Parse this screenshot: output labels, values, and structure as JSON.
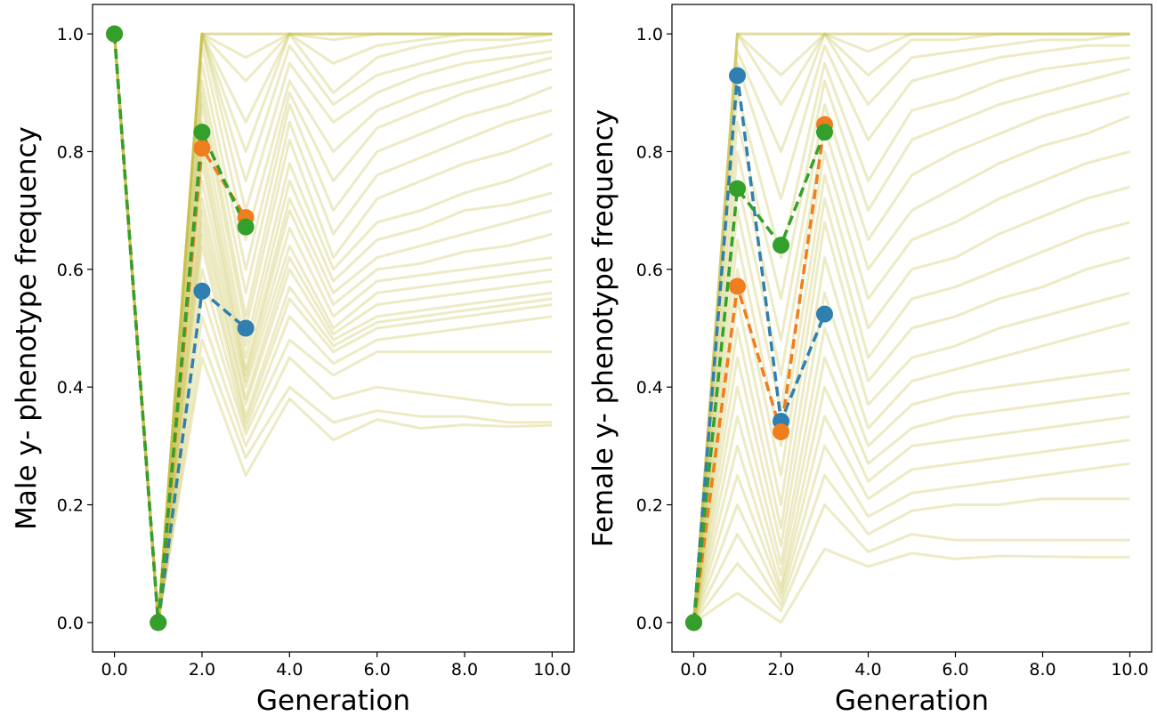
{
  "chart_data": [
    {
      "type": "line",
      "title": "",
      "xlabel": "Generation",
      "ylabel": "Male y- phenotype frequency",
      "xlim": [
        -0.5,
        10.5
      ],
      "ylim": [
        -0.05,
        1.05
      ],
      "xticks": [
        0,
        2,
        4,
        6,
        8,
        10
      ],
      "xtick_labels": [
        "0.0",
        "2.0",
        "4.0",
        "6.0",
        "8.0",
        "10.0"
      ],
      "yticks": [
        0,
        0.2,
        0.4,
        0.6,
        0.8,
        1.0
      ],
      "ytick_labels": [
        "0.0",
        "0.2",
        "0.4",
        "0.6",
        "0.8",
        "1.0"
      ],
      "grid": false,
      "simulation_color": "#c8c04a",
      "simulations_x": [
        0,
        1,
        2,
        3,
        4,
        5,
        6,
        7,
        8,
        9,
        10
      ],
      "simulations": [
        [
          1,
          0,
          1,
          1,
          1,
          1,
          1,
          1,
          1,
          1,
          1
        ],
        [
          1,
          0,
          1,
          1,
          1,
          1,
          1,
          1,
          1,
          1,
          1
        ],
        [
          1,
          0,
          1,
          0.96,
          1,
          1,
          1,
          1,
          1,
          1,
          1
        ],
        [
          1,
          0,
          1,
          0.92,
          1,
          0.99,
          1,
          1,
          1,
          1,
          1
        ],
        [
          1,
          0,
          1,
          0.85,
          1,
          0.95,
          0.98,
          0.99,
          1,
          1,
          1
        ],
        [
          1,
          0,
          1,
          0.8,
          1,
          0.9,
          0.96,
          0.98,
          0.99,
          0.99,
          1
        ],
        [
          1,
          0,
          1,
          0.75,
          0.98,
          0.88,
          0.93,
          0.95,
          0.97,
          0.98,
          0.99
        ],
        [
          1,
          0,
          1,
          0.7,
          0.95,
          0.85,
          0.9,
          0.93,
          0.95,
          0.96,
          0.97
        ],
        [
          1,
          0,
          0.98,
          0.65,
          0.92,
          0.8,
          0.87,
          0.9,
          0.92,
          0.94,
          0.96
        ],
        [
          1,
          0,
          0.95,
          0.6,
          0.9,
          0.75,
          0.84,
          0.87,
          0.9,
          0.92,
          0.94
        ],
        [
          1,
          0,
          0.92,
          0.56,
          0.88,
          0.7,
          0.8,
          0.83,
          0.86,
          0.88,
          0.91
        ],
        [
          1,
          0,
          0.9,
          0.52,
          0.85,
          0.66,
          0.76,
          0.79,
          0.82,
          0.85,
          0.87
        ],
        [
          1,
          0,
          0.88,
          0.5,
          0.82,
          0.62,
          0.72,
          0.75,
          0.78,
          0.8,
          0.83
        ],
        [
          1,
          0,
          0.85,
          0.47,
          0.78,
          0.6,
          0.68,
          0.7,
          0.73,
          0.75,
          0.78
        ],
        [
          1,
          0,
          0.82,
          0.45,
          0.75,
          0.58,
          0.65,
          0.67,
          0.7,
          0.71,
          0.73
        ],
        [
          1,
          0,
          0.8,
          0.43,
          0.72,
          0.56,
          0.62,
          0.64,
          0.66,
          0.68,
          0.7
        ],
        [
          1,
          0,
          0.78,
          0.42,
          0.7,
          0.54,
          0.6,
          0.61,
          0.63,
          0.64,
          0.66
        ],
        [
          1,
          0,
          0.75,
          0.41,
          0.67,
          0.52,
          0.58,
          0.59,
          0.6,
          0.61,
          0.62
        ],
        [
          1,
          0,
          0.72,
          0.4,
          0.64,
          0.5,
          0.56,
          0.57,
          0.58,
          0.59,
          0.6
        ],
        [
          1,
          0,
          0.7,
          0.38,
          0.62,
          0.49,
          0.54,
          0.55,
          0.56,
          0.57,
          0.58
        ],
        [
          1,
          0,
          0.68,
          0.37,
          0.6,
          0.48,
          0.52,
          0.53,
          0.54,
          0.55,
          0.56
        ],
        [
          1,
          0,
          0.66,
          0.35,
          0.57,
          0.47,
          0.51,
          0.52,
          0.53,
          0.54,
          0.55
        ],
        [
          1,
          0,
          0.64,
          0.34,
          0.55,
          0.46,
          0.5,
          0.51,
          0.52,
          0.53,
          0.54
        ],
        [
          1,
          0,
          0.6,
          0.33,
          0.52,
          0.44,
          0.48,
          0.49,
          0.5,
          0.51,
          0.52
        ],
        [
          1,
          0,
          0.56,
          0.32,
          0.48,
          0.42,
          0.46,
          0.46,
          0.46,
          0.46,
          0.46
        ],
        [
          1,
          0,
          0.52,
          0.3,
          0.45,
          0.38,
          0.4,
          0.39,
          0.38,
          0.37,
          0.37
        ],
        [
          1,
          0,
          0.48,
          0.28,
          0.4,
          0.34,
          0.36,
          0.35,
          0.35,
          0.34,
          0.34
        ],
        [
          1,
          0,
          0.45,
          0.25,
          0.38,
          0.31,
          0.345,
          0.33,
          0.336,
          0.333,
          0.335
        ]
      ],
      "series": [
        {
          "color": "#2f7fb0",
          "x": [
            0,
            1,
            2,
            3
          ],
          "values": [
            1.0,
            0.0,
            0.563,
            0.5
          ]
        },
        {
          "color": "#f07d1e",
          "x": [
            0,
            1,
            2,
            3
          ],
          "values": [
            1.0,
            0.0,
            0.806,
            0.688
          ]
        },
        {
          "color": "#33a02c",
          "x": [
            0,
            1,
            2,
            3
          ],
          "values": [
            1.0,
            0.0,
            0.833,
            0.672
          ]
        }
      ]
    },
    {
      "type": "line",
      "title": "",
      "xlabel": "Generation",
      "ylabel": "Female y- phenotype frequency",
      "xlim": [
        -0.5,
        10.5
      ],
      "ylim": [
        -0.05,
        1.05
      ],
      "xticks": [
        0,
        2,
        4,
        6,
        8,
        10
      ],
      "xtick_labels": [
        "0.0",
        "2.0",
        "4.0",
        "6.0",
        "8.0",
        "10.0"
      ],
      "yticks": [
        0,
        0.2,
        0.4,
        0.6,
        0.8,
        1.0
      ],
      "ytick_labels": [
        "0.0",
        "0.2",
        "0.4",
        "0.6",
        "0.8",
        "1.0"
      ],
      "grid": false,
      "simulation_color": "#c8c04a",
      "simulations_x": [
        0,
        1,
        2,
        3,
        4,
        5,
        6,
        7,
        8,
        9,
        10
      ],
      "simulations": [
        [
          0,
          1,
          1,
          1,
          1,
          1,
          1,
          1,
          1,
          1,
          1
        ],
        [
          0,
          1,
          1,
          1,
          1,
          1,
          1,
          1,
          1,
          1,
          1
        ],
        [
          0,
          1,
          0.93,
          1,
          0.97,
          1,
          1,
          1,
          1,
          1,
          1
        ],
        [
          0,
          1,
          0.88,
          1,
          0.93,
          0.99,
          0.99,
          1,
          1,
          1,
          1
        ],
        [
          0,
          0.97,
          0.8,
          1,
          0.88,
          0.96,
          0.97,
          0.98,
          0.99,
          0.99,
          1
        ],
        [
          0,
          0.95,
          0.72,
          0.98,
          0.82,
          0.92,
          0.94,
          0.96,
          0.97,
          0.98,
          0.98
        ],
        [
          0,
          0.9,
          0.62,
          0.95,
          0.75,
          0.87,
          0.89,
          0.92,
          0.94,
          0.95,
          0.96
        ],
        [
          0,
          0.85,
          0.55,
          0.92,
          0.7,
          0.82,
          0.85,
          0.88,
          0.9,
          0.92,
          0.94
        ],
        [
          0,
          0.8,
          0.48,
          0.88,
          0.65,
          0.76,
          0.8,
          0.83,
          0.86,
          0.88,
          0.9
        ],
        [
          0,
          0.75,
          0.42,
          0.84,
          0.6,
          0.7,
          0.74,
          0.78,
          0.81,
          0.83,
          0.86
        ],
        [
          0,
          0.7,
          0.36,
          0.8,
          0.55,
          0.65,
          0.68,
          0.72,
          0.75,
          0.78,
          0.8
        ],
        [
          0,
          0.65,
          0.3,
          0.76,
          0.5,
          0.6,
          0.62,
          0.66,
          0.69,
          0.72,
          0.74
        ],
        [
          0,
          0.6,
          0.25,
          0.72,
          0.45,
          0.55,
          0.57,
          0.6,
          0.63,
          0.66,
          0.68
        ],
        [
          0,
          0.55,
          0.2,
          0.68,
          0.41,
          0.5,
          0.52,
          0.55,
          0.57,
          0.6,
          0.62
        ],
        [
          0,
          0.5,
          0.16,
          0.62,
          0.37,
          0.45,
          0.47,
          0.5,
          0.52,
          0.54,
          0.56
        ],
        [
          0,
          0.45,
          0.13,
          0.56,
          0.33,
          0.41,
          0.43,
          0.45,
          0.47,
          0.49,
          0.51
        ],
        [
          0,
          0.4,
          0.1,
          0.5,
          0.3,
          0.37,
          0.39,
          0.4,
          0.41,
          0.42,
          0.43
        ],
        [
          0,
          0.35,
          0.08,
          0.45,
          0.27,
          0.33,
          0.35,
          0.36,
          0.37,
          0.38,
          0.39
        ],
        [
          0,
          0.3,
          0.06,
          0.4,
          0.24,
          0.3,
          0.31,
          0.32,
          0.33,
          0.34,
          0.35
        ],
        [
          0,
          0.25,
          0.05,
          0.35,
          0.21,
          0.26,
          0.27,
          0.28,
          0.29,
          0.3,
          0.31
        ],
        [
          0,
          0.2,
          0.04,
          0.3,
          0.18,
          0.22,
          0.23,
          0.24,
          0.25,
          0.26,
          0.27
        ],
        [
          0,
          0.15,
          0.03,
          0.25,
          0.15,
          0.19,
          0.2,
          0.2,
          0.21,
          0.21,
          0.21
        ],
        [
          0,
          0.1,
          0.02,
          0.2,
          0.12,
          0.15,
          0.14,
          0.14,
          0.14,
          0.14,
          0.14
        ],
        [
          0,
          0.05,
          0,
          0.125,
          0.095,
          0.118,
          0.108,
          0.113,
          0.112,
          0.111,
          0.111
        ]
      ],
      "series": [
        {
          "color": "#2f7fb0",
          "x": [
            0,
            1,
            2,
            3
          ],
          "values": [
            0.0,
            0.929,
            0.342,
            0.524
          ]
        },
        {
          "color": "#f07d1e",
          "x": [
            0,
            1,
            2,
            3
          ],
          "values": [
            0.0,
            0.571,
            0.324,
            0.846
          ]
        },
        {
          "color": "#33a02c",
          "x": [
            0,
            1,
            2,
            3
          ],
          "values": [
            0.0,
            0.737,
            0.641,
            0.833
          ]
        }
      ]
    }
  ]
}
